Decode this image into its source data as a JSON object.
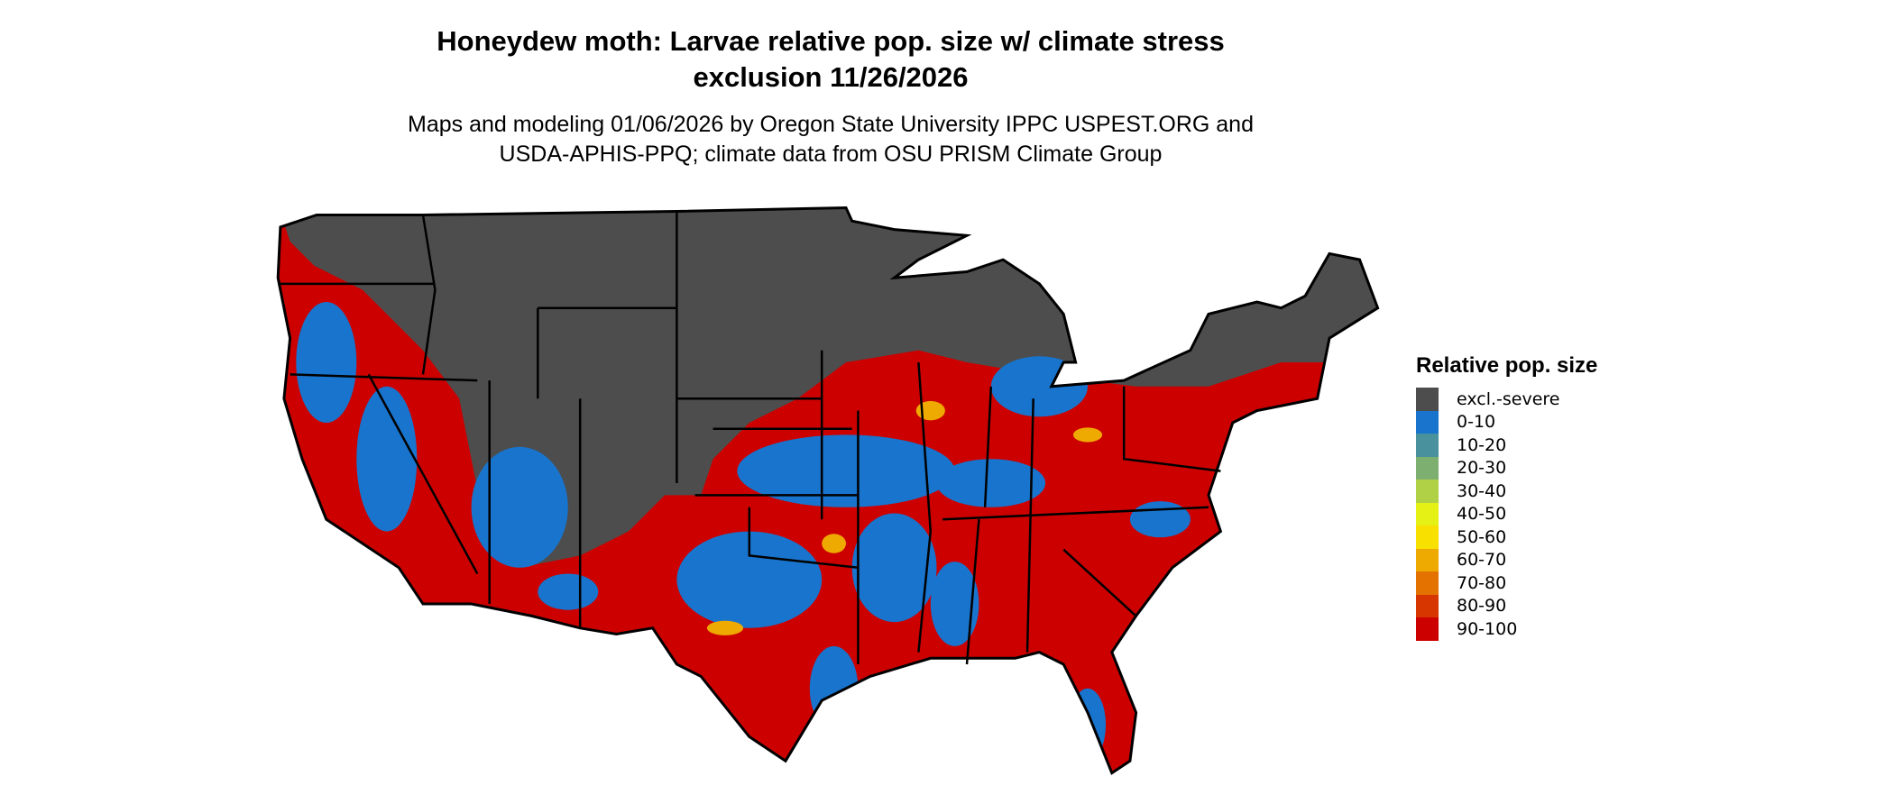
{
  "title_line1": "Honeydew moth: Larvae relative pop. size w/ climate stress",
  "title_line2": "exclusion 11/26/2026",
  "subtitle_line1": "Maps and modeling 01/06/2026 by Oregon State University IPPC USPEST.ORG and",
  "subtitle_line2": "USDA-APHIS-PPQ; climate data from OSU PRISM Climate Group",
  "legend": {
    "title": "Relative pop. size",
    "items": [
      {
        "label": "excl.-severe",
        "color": "#4d4d4d"
      },
      {
        "label": "0-10",
        "color": "#1874cd"
      },
      {
        "label": "10-20",
        "color": "#4a919e"
      },
      {
        "label": "20-30",
        "color": "#7daf70"
      },
      {
        "label": "30-40",
        "color": "#b0d045"
      },
      {
        "label": "40-50",
        "color": "#e5f015"
      },
      {
        "label": "50-60",
        "color": "#f8e000"
      },
      {
        "label": "60-70",
        "color": "#eeaa00"
      },
      {
        "label": "70-80",
        "color": "#e37200"
      },
      {
        "label": "80-90",
        "color": "#d83600"
      },
      {
        "label": "90-100",
        "color": "#cd0000"
      }
    ]
  }
}
